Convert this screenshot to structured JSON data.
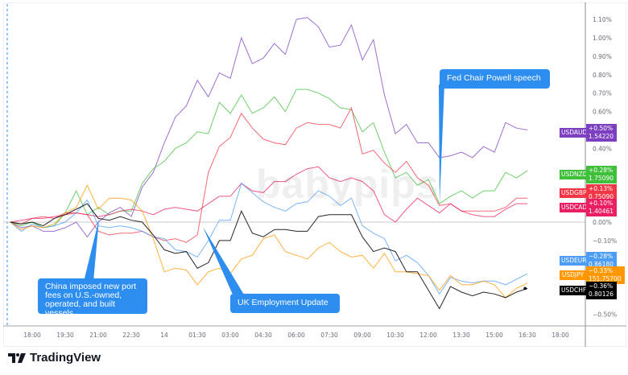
{
  "chart_data": {
    "type": "line",
    "x": [
      "17:00",
      "17:30",
      "18:00",
      "18:30",
      "19:00",
      "19:30",
      "20:00",
      "20:30",
      "21:00",
      "21:30",
      "22:00",
      "22:30",
      "23:00",
      "23:30",
      "00:00",
      "00:30",
      "01:00",
      "01:30",
      "02:00",
      "02:30",
      "03:00",
      "03:30",
      "04:00",
      "04:30",
      "05:00",
      "05:30",
      "06:00",
      "06:30",
      "07:00",
      "07:30",
      "08:00",
      "08:30",
      "09:00",
      "09:30",
      "10:00",
      "10:30",
      "11:00",
      "11:30",
      "12:00",
      "12:30",
      "13:00",
      "13:30",
      "14:00",
      "14:30",
      "15:00",
      "15:30",
      "16:00",
      "16:30"
    ],
    "x_tick_labels": [
      "18:00",
      "19:30",
      "21:00",
      "22:30",
      "14",
      "01:30",
      "03:00",
      "04:30",
      "06:00",
      "07:30",
      "09:00",
      "10:30",
      "12:00",
      "13:30",
      "15:00",
      "16:30",
      "18:00"
    ],
    "y_tick_labels": [
      "1.10%",
      "1.00%",
      "0.90%",
      "0.80%",
      "0.70%",
      "0.60%",
      "0.40%",
      "0.00%",
      "−0.10%",
      "−0.50%"
    ],
    "ylim": [
      -0.6,
      1.18
    ],
    "y_unit": "%",
    "grid": false,
    "legend": "right-axis labels",
    "series": [
      {
        "name": "USDAUD",
        "color": "#7b3fc0",
        "change": "+0.50%",
        "price": "1.54220",
        "values": [
          0,
          -0.03,
          -0.02,
          -0.05,
          -0.05,
          -0.03,
          0,
          -0.08,
          0,
          0.05,
          0.08,
          0.03,
          0.19,
          0.27,
          0.43,
          0.57,
          0.63,
          0.77,
          0.68,
          0.81,
          0.78,
          1.0,
          0.86,
          0.89,
          0.97,
          0.91,
          1.1,
          1.11,
          1.06,
          0.95,
          0.96,
          1.07,
          0.88,
          0.99,
          0.69,
          0.48,
          0.53,
          0.43,
          0.43,
          0.35,
          0.36,
          0.38,
          0.35,
          0.41,
          0.38,
          0.54,
          0.51,
          0.5
        ]
      },
      {
        "name": "USDNZD",
        "color": "#3fbf3a",
        "change": "+0.28%",
        "price": "1.75090",
        "values": [
          0,
          -0.02,
          0,
          -0.03,
          -0.02,
          0.05,
          0.17,
          0.04,
          0.08,
          0.04,
          0.06,
          0.06,
          0.21,
          0.29,
          0.33,
          0.4,
          0.43,
          0.49,
          0.48,
          0.65,
          0.59,
          0.69,
          0.59,
          0.62,
          0.68,
          0.6,
          0.72,
          0.72,
          0.7,
          0.67,
          0.62,
          0.61,
          0.49,
          0.54,
          0.38,
          0.24,
          0.27,
          0.2,
          0.23,
          0.1,
          0.14,
          0.17,
          0.13,
          0.17,
          0.17,
          0.27,
          0.24,
          0.28
        ]
      },
      {
        "name": "USDGBP",
        "color": "#f23645",
        "change": "+0.13%",
        "price": "0.75090",
        "values": [
          0,
          -0.01,
          0.02,
          0.03,
          0.02,
          0.05,
          0.05,
          0.04,
          -0.05,
          -0.07,
          -0.06,
          -0.06,
          -0.05,
          -0.08,
          -0.1,
          -0.09,
          -0.11,
          -0.07,
          0.27,
          0.41,
          0.46,
          0.59,
          0.51,
          0.45,
          0.43,
          0.42,
          0.51,
          0.54,
          0.53,
          0.53,
          0.51,
          0.62,
          0.37,
          0.39,
          0.32,
          0.27,
          0.33,
          0.24,
          0.2,
          0.09,
          0.1,
          0.06,
          0.06,
          0.06,
          0.06,
          0.08,
          0.13,
          0.13
        ]
      },
      {
        "name": "USDCAD",
        "color": "#e91e63",
        "change": "+0.10%",
        "price": "1.40461",
        "values": [
          0,
          0.01,
          0.02,
          0.02,
          0.03,
          0.04,
          0.05,
          0.04,
          0.03,
          0.04,
          0.06,
          0.07,
          0.06,
          0.04,
          0.07,
          0.08,
          0.07,
          0.06,
          0.1,
          0.14,
          0.14,
          0.21,
          0.17,
          0.16,
          0.22,
          0.22,
          0.26,
          0.29,
          0.3,
          0.24,
          0.22,
          0.24,
          0.22,
          0.17,
          0.04,
          0,
          0.07,
          0.13,
          0.09,
          0.05,
          0.1,
          0.06,
          0.04,
          0.03,
          0.03,
          0.07,
          0.1,
          0.1
        ]
      },
      {
        "name": "USDEUR",
        "color": "#4d9cf5",
        "change": "−0.28%",
        "price": "0.86180",
        "values": [
          0,
          -0.05,
          -0.01,
          -0.03,
          -0.02,
          0,
          0.05,
          0.12,
          -0.02,
          -0.03,
          -0.02,
          -0.03,
          -0.05,
          -0.08,
          -0.09,
          -0.15,
          -0.16,
          -0.19,
          -0.1,
          0.01,
          0.01,
          0.21,
          0.16,
          0.11,
          0.08,
          0.06,
          0.1,
          0.11,
          0.17,
          0.14,
          0.09,
          0.13,
          -0.02,
          -0.06,
          -0.09,
          -0.21,
          -0.18,
          -0.22,
          -0.29,
          -0.39,
          -0.3,
          -0.32,
          -0.33,
          -0.32,
          -0.32,
          -0.34,
          -0.31,
          -0.28
        ]
      },
      {
        "name": "USDJPY",
        "color": "#ff9800",
        "change": "−0.33%",
        "price": "151.75700",
        "values": [
          0,
          -0.04,
          -0.02,
          -0.03,
          -0.01,
          0.05,
          0.08,
          0.2,
          0.07,
          0.13,
          0.13,
          0.12,
          0.06,
          -0.09,
          -0.27,
          -0.25,
          -0.26,
          -0.34,
          -0.27,
          -0.25,
          -0.28,
          -0.2,
          -0.18,
          -0.09,
          -0.07,
          -0.16,
          -0.18,
          -0.2,
          -0.14,
          -0.11,
          -0.16,
          -0.19,
          -0.18,
          -0.25,
          -0.17,
          -0.27,
          -0.27,
          -0.28,
          -0.29,
          -0.37,
          -0.29,
          -0.34,
          -0.34,
          -0.32,
          -0.34,
          -0.41,
          -0.36,
          -0.33
        ]
      },
      {
        "name": "USDCHF",
        "color": "#000000",
        "change": "−0.36%",
        "price": "0.80126",
        "values": [
          0,
          -0.01,
          0,
          -0.02,
          0.02,
          0.04,
          0.07,
          0.1,
          0.02,
          0.01,
          0.03,
          0.01,
          0,
          -0.07,
          -0.15,
          -0.17,
          -0.16,
          -0.25,
          -0.22,
          -0.1,
          -0.1,
          0.06,
          -0.06,
          -0.08,
          -0.04,
          -0.04,
          -0.05,
          -0.05,
          0.03,
          0.04,
          0.04,
          0.04,
          -0.08,
          -0.16,
          -0.14,
          -0.16,
          -0.27,
          -0.27,
          -0.37,
          -0.47,
          -0.35,
          -0.38,
          -0.4,
          -0.38,
          -0.39,
          -0.41,
          -0.38,
          -0.36
        ]
      }
    ],
    "annotations": [
      {
        "text": "China imposed new port fees on U.S.-owned, operated, and built vessels",
        "at": "21:00"
      },
      {
        "text": "UK Employment Update",
        "at": "01:00"
      },
      {
        "text": "Fed Chair Powell speech",
        "at": "12:00"
      }
    ]
  },
  "watermark": "babypips",
  "brand": "TradingView"
}
